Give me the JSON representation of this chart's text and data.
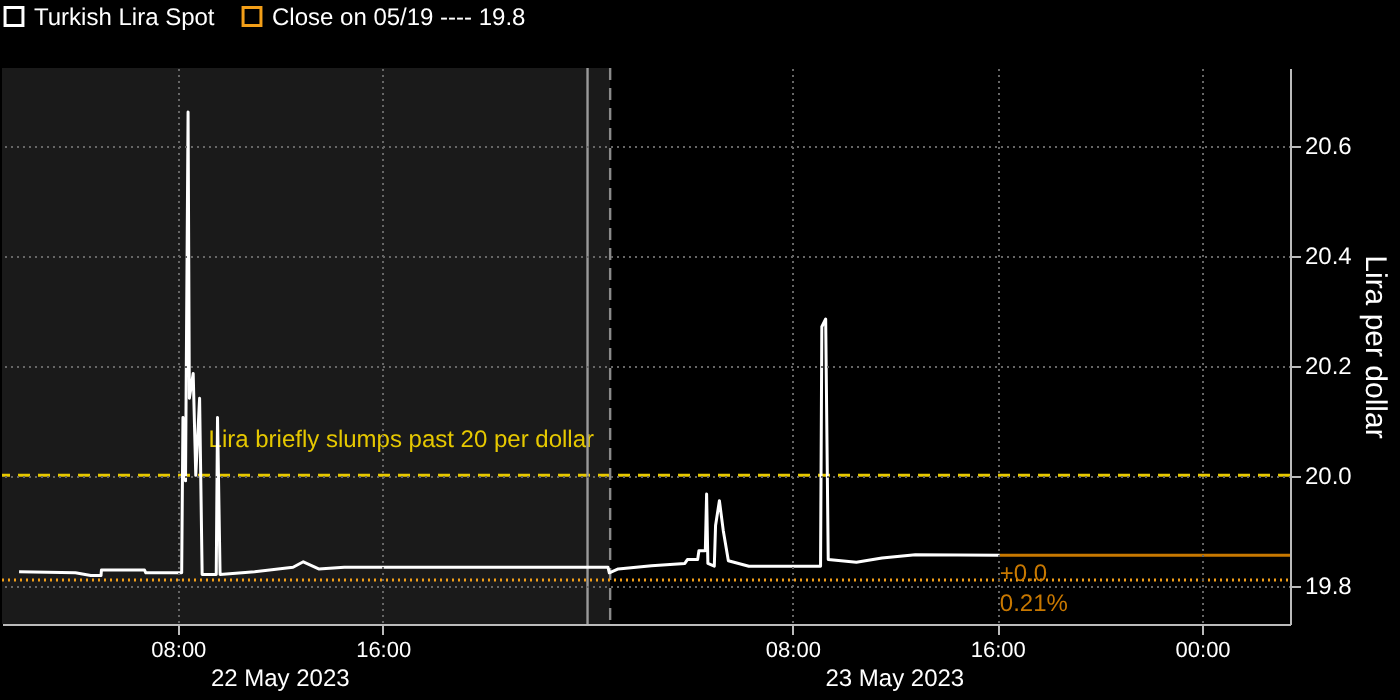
{
  "chart_data": {
    "type": "line",
    "ylabel": "Lira per dollar",
    "xlim": [
      "2023-05-22T01:08",
      "2023-05-24T03:26"
    ],
    "xticks": [
      {
        "value": "2023-05-22T08:00",
        "label": "08:00"
      },
      {
        "value": "2023-05-22T16:00",
        "label": "16:00"
      },
      {
        "value": "2023-05-23T08:00",
        "label": "08:00"
      },
      {
        "value": "2023-05-23T16:00",
        "label": "16:00"
      },
      {
        "value": "2023-05-24T00:00",
        "label": "00:00"
      }
    ],
    "ylim": [
      19.73,
      20.74
    ],
    "yticks": [
      19.8,
      {
        "value": 20,
        "label": "20.0"
      },
      20.2,
      20.4,
      20.6
    ],
    "grid": true,
    "legend": "top left",
    "series": [
      {
        "name": "Turkish Lira Spot",
        "color": "#ffffff",
        "x": [
          "2023-05-22T01:48",
          "2023-05-22T04:00",
          "2023-05-22T04:36",
          "2023-05-22T05:00",
          "2023-05-22T05:01",
          "2023-05-22T06:42",
          "2023-05-22T06:45",
          "2023-05-22T08:09",
          "2023-05-22T08:12",
          "2023-05-22T08:18",
          "2023-05-22T08:24",
          "2023-05-22T08:27",
          "2023-05-22T08:36",
          "2023-05-22T08:42",
          "2023-05-22T08:51",
          "2023-05-22T08:57",
          "2023-05-22T09:30",
          "2023-05-22T09:33",
          "2023-05-22T09:39",
          "2023-05-22T11:00",
          "2023-05-22T12:30",
          "2023-05-22T12:54",
          "2023-05-22T13:30",
          "2023-05-22T14:30",
          "2023-05-23T00:48",
          "2023-05-23T00:51",
          "2023-05-23T01:12",
          "2023-05-23T02:30",
          "2023-05-23T03:48",
          "2023-05-23T03:54",
          "2023-05-23T04:18",
          "2023-05-23T04:21",
          "2023-05-23T04:36",
          "2023-05-23T04:39",
          "2023-05-23T04:42",
          "2023-05-23T04:57",
          "2023-05-23T05:00",
          "2023-05-23T05:09",
          "2023-05-23T05:18",
          "2023-05-23T05:30",
          "2023-05-23T06:18",
          "2023-05-23T09:06",
          "2023-05-23T09:09",
          "2023-05-23T09:18",
          "2023-05-23T09:24",
          "2023-05-23T10:30",
          "2023-05-23T11:30",
          "2023-05-23T12:48",
          "2023-05-23T16:06"
        ],
        "values": [
          19.825,
          19.823,
          19.818,
          19.818,
          19.828,
          19.828,
          19.823,
          19.823,
          20.105,
          19.99,
          20.66,
          20.14,
          20.185,
          20.0,
          20.14,
          19.82,
          19.82,
          20.105,
          19.82,
          19.825,
          19.833,
          19.843,
          19.83,
          19.833,
          19.833,
          19.823,
          19.83,
          19.836,
          19.84,
          19.847,
          19.847,
          19.863,
          19.863,
          19.966,
          19.84,
          19.835,
          19.909,
          19.954,
          19.9,
          19.845,
          19.835,
          19.835,
          20.27,
          20.284,
          19.847,
          19.842,
          19.85,
          19.856,
          19.855
        ]
      },
      {
        "name": "Close on 05/19 ---- 19.8",
        "color": "#f39f18",
        "line_style": "dotted",
        "x": [
          "2023-05-22T01:08",
          "2023-05-24T03:26"
        ],
        "values": [
          19.81,
          19.81
        ]
      },
      {
        "color": "#c87800",
        "x": [
          "2023-05-23T16:06",
          "2023-05-24T03:26"
        ],
        "values": [
          19.855,
          19.855
        ]
      }
    ],
    "ref_lines": [
      {
        "axis": "y",
        "value": 20.0,
        "label": "Lira briefly slumps past 20 per dollar",
        "color": "#e6c800",
        "line_style": "dashed"
      },
      {
        "axis": "x",
        "value": "2023-05-23T00:00",
        "color": "#9a9a9a",
        "line_style": "solid"
      },
      {
        "axis": "x",
        "value": "2023-05-23T00:53",
        "color": "#8a8a8a",
        "line_style": "dashed"
      }
    ],
    "bands": [
      {
        "axis": "x",
        "from": "2023-05-22T01:08",
        "to": "2023-05-23T00:53",
        "color": "#1a1a1a"
      }
    ],
    "annotations": [
      "22 May 2023",
      "23 May 2023",
      {
        "text": "+0.0",
        "x": "2023-05-23T16:06",
        "y": 19.855
      },
      {
        "text": "0.21%",
        "x": "2023-05-23T16:06",
        "y": 19.855
      }
    ]
  }
}
